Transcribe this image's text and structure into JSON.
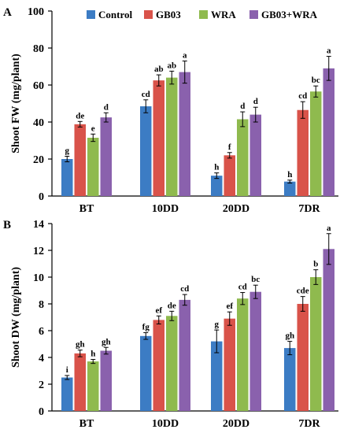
{
  "chart_data": [
    {
      "type": "bar",
      "panel_label": "A",
      "categories": [
        "BT",
        "10DD",
        "20DD",
        "7DR"
      ],
      "ylabel": "Shoot FW (mg/plant)",
      "ylim": [
        0,
        100
      ],
      "yticks": [
        0,
        20,
        40,
        60,
        80,
        100
      ],
      "ytick_labels": [
        "0",
        "20",
        "40",
        "60",
        "80",
        "100"
      ],
      "legend_position": "top",
      "series": [
        {
          "name": "Control",
          "color": "#3c7cc4",
          "values": [
            20,
            48.5,
            11,
            7.8
          ],
          "errors": [
            1.5,
            3.5,
            1.5,
            0.8
          ],
          "letters": [
            "g",
            "cd",
            "h",
            "h"
          ]
        },
        {
          "name": "GB03",
          "color": "#d9534a",
          "values": [
            38.8,
            62.5,
            22,
            46.5
          ],
          "errors": [
            1.5,
            3,
            1.5,
            4.5
          ],
          "letters": [
            "de",
            "ab",
            "f",
            "cd"
          ]
        },
        {
          "name": "WRA",
          "color": "#8fba4e",
          "values": [
            31.5,
            64,
            41.5,
            56.5
          ],
          "errors": [
            2,
            3.5,
            4,
            3
          ],
          "letters": [
            "e",
            "ab",
            "d",
            "bc"
          ]
        },
        {
          "name": "GB03+WRA",
          "color": "#8a61ad",
          "values": [
            42.5,
            67,
            44,
            69
          ],
          "errors": [
            2.5,
            6,
            4,
            6.5
          ],
          "letters": [
            "d",
            "a",
            "d",
            "a"
          ]
        }
      ]
    },
    {
      "type": "bar",
      "panel_label": "B",
      "categories": [
        "BT",
        "10DD",
        "20DD",
        "7DR"
      ],
      "ylabel": "Shoot DW (mg/plant)",
      "ylim": [
        0,
        14
      ],
      "yticks": [
        0,
        2,
        4,
        6,
        8,
        10,
        12,
        14
      ],
      "ytick_labels": [
        "0",
        "2",
        "4",
        "6",
        "8",
        "10",
        "12",
        "14"
      ],
      "series": [
        {
          "name": "Control",
          "color": "#3c7cc4",
          "values": [
            2.5,
            5.6,
            5.2,
            4.7
          ],
          "errors": [
            0.15,
            0.25,
            0.85,
            0.5
          ],
          "letters": [
            "i",
            "fg",
            "g",
            "gh"
          ]
        },
        {
          "name": "GB03",
          "color": "#d9534a",
          "values": [
            4.3,
            6.8,
            6.9,
            8.0
          ],
          "errors": [
            0.25,
            0.3,
            0.5,
            0.55
          ],
          "letters": [
            "gh",
            "ef",
            "ef",
            "cde"
          ]
        },
        {
          "name": "WRA",
          "color": "#8fba4e",
          "values": [
            3.7,
            7.1,
            8.4,
            10.0
          ],
          "errors": [
            0.15,
            0.35,
            0.45,
            0.55
          ],
          "letters": [
            "h",
            "de",
            "cd",
            "b"
          ]
        },
        {
          "name": "GB03+WRA",
          "color": "#8a61ad",
          "values": [
            4.5,
            8.3,
            8.9,
            12.1
          ],
          "errors": [
            0.25,
            0.4,
            0.5,
            1.15
          ],
          "letters": [
            "gh",
            "cd",
            "bc",
            "a"
          ]
        }
      ]
    }
  ]
}
